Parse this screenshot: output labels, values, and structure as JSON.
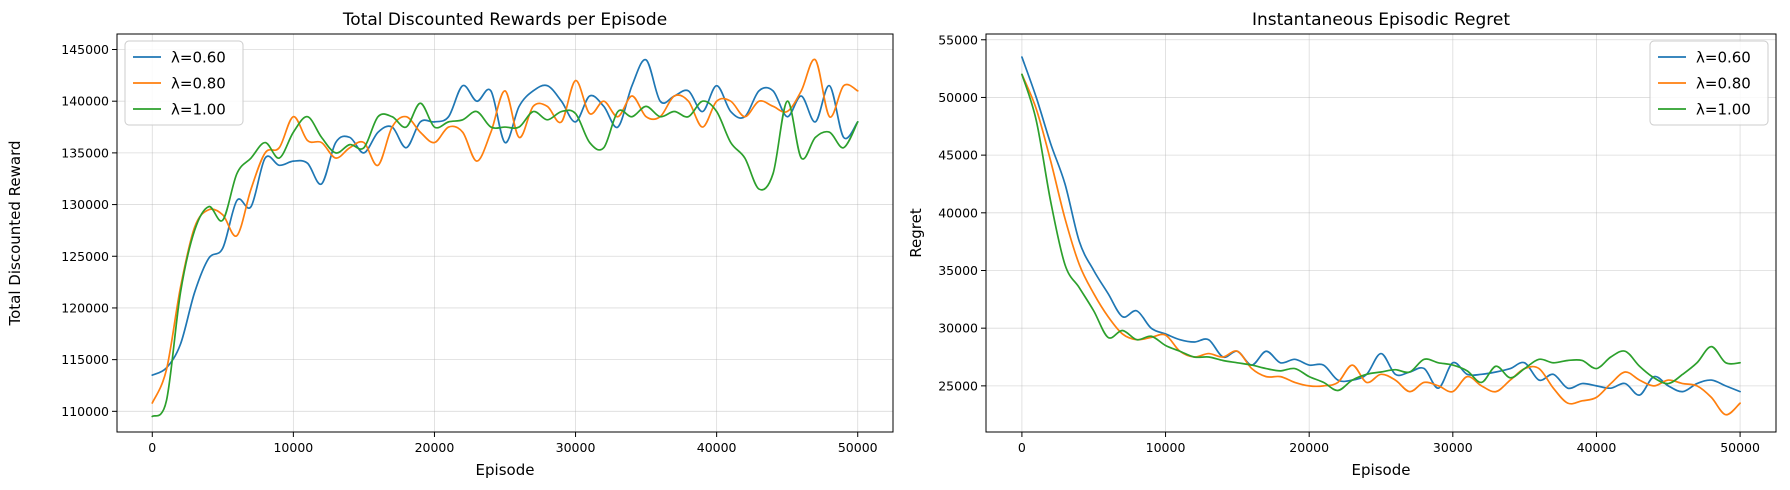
{
  "colors": {
    "s1": "#1f77b4",
    "s2": "#ff7f0e",
    "s3": "#2ca02c"
  },
  "chart_data": [
    {
      "type": "line",
      "title": "Total Discounted Rewards per Episode",
      "xlabel": "Episode",
      "ylabel": "Total Discounted Reward",
      "xlim": [
        -2500,
        52500
      ],
      "ylim": [
        108000,
        146500
      ],
      "xticks": [
        0,
        10000,
        20000,
        30000,
        40000,
        50000
      ],
      "yticks": [
        110000,
        115000,
        120000,
        125000,
        130000,
        135000,
        140000,
        145000
      ],
      "grid": true,
      "legend": "top-left",
      "series": [
        {
          "name": "λ=0.60",
          "color": "#1f77b4",
          "x": [
            0,
            1000,
            2000,
            3000,
            4000,
            5000,
            6000,
            7000,
            8000,
            9000,
            10000,
            11000,
            12000,
            13000,
            14000,
            15000,
            16000,
            17000,
            18000,
            19000,
            20000,
            21000,
            22000,
            23000,
            24000,
            25000,
            26000,
            27000,
            28000,
            29000,
            30000,
            31000,
            32000,
            33000,
            34000,
            35000,
            36000,
            37000,
            38000,
            39000,
            40000,
            41000,
            42000,
            43000,
            44000,
            45000,
            46000,
            47000,
            48000,
            49000,
            50000
          ],
          "y": [
            113500,
            114200,
            116500,
            121500,
            124800,
            125800,
            130400,
            129800,
            134500,
            133800,
            134200,
            134000,
            132000,
            136000,
            136500,
            135000,
            137000,
            137500,
            135500,
            138000,
            138000,
            138500,
            141500,
            140000,
            141000,
            136000,
            139500,
            141000,
            141500,
            140000,
            138000,
            140500,
            139500,
            137500,
            141500,
            144000,
            140000,
            140500,
            141000,
            139000,
            141500,
            139000,
            138500,
            141000,
            141000,
            138500,
            140500,
            138000,
            141500,
            136500,
            138000
          ]
        },
        {
          "name": "λ=0.80",
          "color": "#ff7f0e",
          "x": [
            0,
            1000,
            2000,
            3000,
            4000,
            5000,
            6000,
            7000,
            8000,
            9000,
            10000,
            11000,
            12000,
            13000,
            14000,
            15000,
            16000,
            17000,
            18000,
            19000,
            20000,
            21000,
            22000,
            23000,
            24000,
            25000,
            26000,
            27000,
            28000,
            29000,
            30000,
            31000,
            32000,
            33000,
            34000,
            35000,
            36000,
            37000,
            38000,
            39000,
            40000,
            41000,
            42000,
            43000,
            44000,
            45000,
            46000,
            47000,
            48000,
            49000,
            50000
          ],
          "y": [
            110800,
            114000,
            122000,
            127800,
            129500,
            129000,
            127000,
            131500,
            135000,
            135500,
            138500,
            136200,
            136000,
            134500,
            135500,
            136000,
            133800,
            137500,
            138500,
            137000,
            136000,
            137500,
            137000,
            134200,
            137000,
            141000,
            136500,
            139500,
            139500,
            138000,
            142000,
            138800,
            140000,
            138500,
            140500,
            138500,
            138500,
            140500,
            140000,
            137500,
            140000,
            140000,
            138500,
            140000,
            139500,
            139000,
            141000,
            144000,
            138500,
            141500,
            141000
          ]
        },
        {
          "name": "λ=1.00",
          "color": "#2ca02c",
          "x": [
            0,
            1000,
            2000,
            3000,
            4000,
            5000,
            6000,
            7000,
            8000,
            9000,
            10000,
            11000,
            12000,
            13000,
            14000,
            15000,
            16000,
            17000,
            18000,
            19000,
            20000,
            21000,
            22000,
            23000,
            24000,
            25000,
            26000,
            27000,
            28000,
            29000,
            30000,
            31000,
            32000,
            33000,
            34000,
            35000,
            36000,
            37000,
            38000,
            39000,
            40000,
            41000,
            42000,
            43000,
            44000,
            45000,
            46000,
            47000,
            48000,
            49000,
            50000
          ],
          "y": [
            109500,
            111000,
            121500,
            127500,
            129800,
            128500,
            133000,
            134500,
            136000,
            134500,
            137000,
            138500,
            136500,
            135000,
            135800,
            135500,
            138500,
            138500,
            137500,
            139800,
            137500,
            138000,
            138200,
            139000,
            137500,
            137500,
            137500,
            139000,
            138200,
            139000,
            138800,
            136000,
            135500,
            139000,
            138500,
            139500,
            138500,
            139000,
            138500,
            140000,
            139000,
            136000,
            134500,
            131500,
            133000,
            140000,
            134500,
            136500,
            137000,
            135500,
            138000
          ]
        }
      ]
    },
    {
      "type": "line",
      "title": "Instantaneous Episodic Regret",
      "xlabel": "Episode",
      "ylabel": "Regret",
      "xlim": [
        -2500,
        52500
      ],
      "ylim": [
        21000,
        55500
      ],
      "xticks": [
        0,
        10000,
        20000,
        30000,
        40000,
        50000
      ],
      "yticks": [
        25000,
        30000,
        35000,
        40000,
        45000,
        50000,
        55000
      ],
      "grid": true,
      "legend": "top-right",
      "series": [
        {
          "name": "λ=0.60",
          "color": "#1f77b4",
          "x": [
            0,
            1000,
            2000,
            3000,
            4000,
            5000,
            6000,
            7000,
            8000,
            9000,
            10000,
            11000,
            12000,
            13000,
            14000,
            15000,
            16000,
            17000,
            18000,
            19000,
            20000,
            21000,
            22000,
            23000,
            24000,
            25000,
            26000,
            27000,
            28000,
            29000,
            30000,
            31000,
            32000,
            33000,
            34000,
            35000,
            36000,
            37000,
            38000,
            39000,
            40000,
            41000,
            42000,
            43000,
            44000,
            45000,
            46000,
            47000,
            48000,
            49000,
            50000
          ],
          "y": [
            53500,
            50000,
            46000,
            42500,
            37500,
            35000,
            33000,
            31000,
            31500,
            30000,
            29500,
            29000,
            28800,
            29000,
            27500,
            28000,
            26800,
            28000,
            27000,
            27300,
            26800,
            26800,
            25500,
            25500,
            26000,
            27800,
            26000,
            26200,
            26500,
            24800,
            27000,
            26000,
            26000,
            26200,
            26500,
            27000,
            25500,
            26000,
            24800,
            25200,
            25000,
            24800,
            25200,
            24200,
            25800,
            25000,
            24500,
            25200,
            25500,
            25000,
            24500
          ]
        },
        {
          "name": "λ=0.80",
          "color": "#ff7f0e",
          "x": [
            0,
            1000,
            2000,
            3000,
            4000,
            5000,
            6000,
            7000,
            8000,
            9000,
            10000,
            11000,
            12000,
            13000,
            14000,
            15000,
            16000,
            17000,
            18000,
            19000,
            20000,
            21000,
            22000,
            23000,
            24000,
            25000,
            26000,
            27000,
            28000,
            29000,
            30000,
            31000,
            32000,
            33000,
            34000,
            35000,
            36000,
            37000,
            38000,
            39000,
            40000,
            41000,
            42000,
            43000,
            44000,
            45000,
            46000,
            47000,
            48000,
            49000,
            50000
          ],
          "y": [
            52000,
            49000,
            44500,
            39500,
            35500,
            33000,
            31000,
            29500,
            29000,
            29200,
            29400,
            28000,
            27500,
            27800,
            27500,
            28000,
            26500,
            25800,
            25800,
            25300,
            25000,
            25000,
            25300,
            26800,
            25300,
            26000,
            25500,
            24500,
            25300,
            25000,
            24500,
            25800,
            25000,
            24500,
            25500,
            26500,
            26500,
            24800,
            23500,
            23700,
            24000,
            25200,
            26200,
            25500,
            25000,
            25500,
            25200,
            25000,
            24000,
            22500,
            23500
          ]
        },
        {
          "name": "λ=1.00",
          "color": "#2ca02c",
          "x": [
            0,
            1000,
            2000,
            3000,
            4000,
            5000,
            6000,
            7000,
            8000,
            9000,
            10000,
            11000,
            12000,
            13000,
            14000,
            15000,
            16000,
            17000,
            18000,
            19000,
            20000,
            21000,
            22000,
            23000,
            24000,
            25000,
            26000,
            27000,
            28000,
            29000,
            30000,
            31000,
            32000,
            33000,
            34000,
            35000,
            36000,
            37000,
            38000,
            39000,
            40000,
            41000,
            42000,
            43000,
            44000,
            45000,
            46000,
            47000,
            48000,
            49000,
            50000
          ],
          "y": [
            52000,
            48000,
            41000,
            35500,
            33500,
            31500,
            29200,
            29800,
            29000,
            29300,
            28500,
            28000,
            27500,
            27500,
            27200,
            27000,
            26800,
            26500,
            26300,
            26500,
            25800,
            25300,
            24600,
            25500,
            26000,
            26200,
            26400,
            26200,
            27300,
            27000,
            26800,
            26300,
            25300,
            26700,
            25700,
            26500,
            27300,
            27000,
            27200,
            27200,
            26500,
            27500,
            28000,
            26700,
            25700,
            25200,
            26000,
            27000,
            28400,
            27000,
            27000
          ]
        }
      ]
    }
  ]
}
